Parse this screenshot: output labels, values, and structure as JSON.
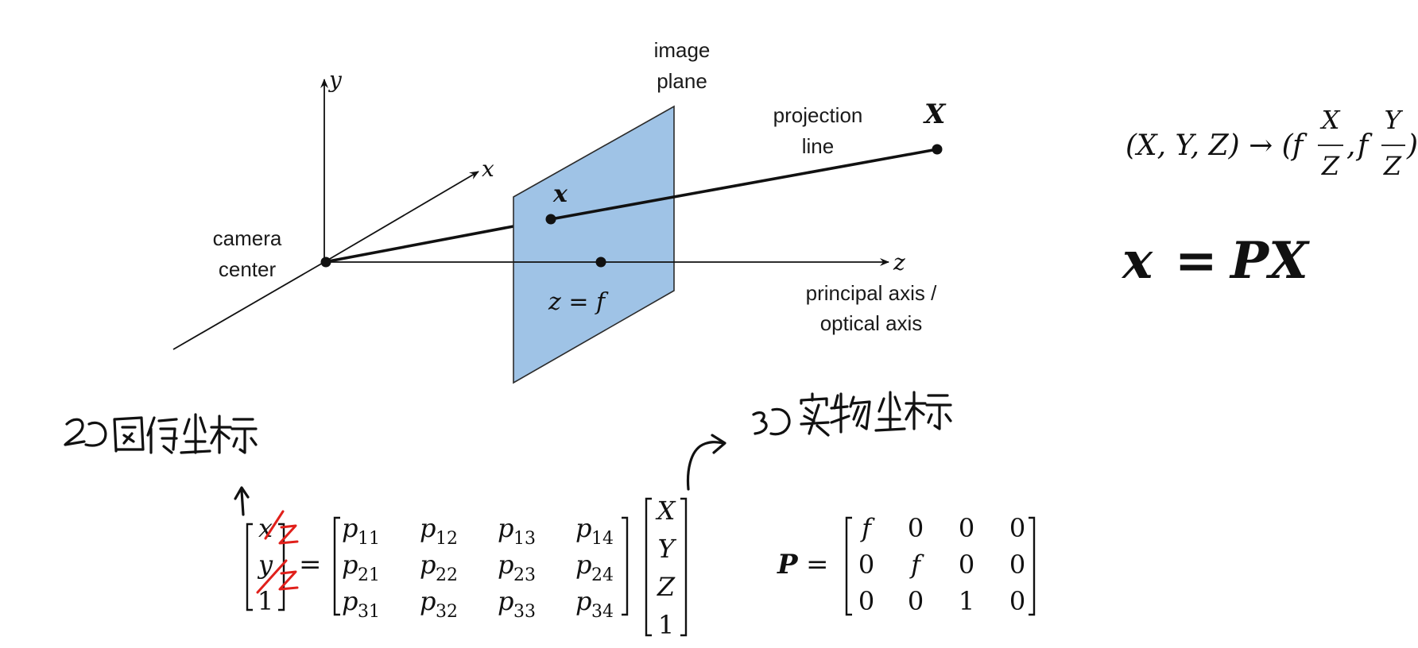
{
  "diagram": {
    "labels": {
      "image_plane_1": "image",
      "image_plane_2": "plane",
      "projection_line_1": "projection",
      "projection_line_2": "line",
      "camera_center_1": "camera",
      "camera_center_2": "center",
      "principal_axis_1": "principal axis /",
      "principal_axis_2": "optical axis"
    },
    "axis_y": "y",
    "axis_x": "x",
    "axis_z": "z",
    "world_point": "X",
    "image_point": "x",
    "plane_eq": "z = f",
    "plane_color": "#9fc3e6"
  },
  "equations": {
    "mapping": "(X, Y, Z) → (f X/Z, f Y/Z)",
    "mapping_left": "(X, Y, Z) → (",
    "mapping_f1": "f",
    "mapping_num1": "X",
    "mapping_den1": "Z",
    "mapping_comma": ",",
    "mapping_f2": "f",
    "mapping_num2": "Y",
    "mapping_den2": "Z",
    "mapping_right": ")",
    "projection": "x = PX",
    "projection_lhs": "x",
    "projection_eq": "=",
    "projection_rhs": "PX"
  },
  "matrix_equation": {
    "lhs": [
      "x",
      "y",
      "1"
    ],
    "equals": "=",
    "p": [
      [
        "p11",
        "p12",
        "p13",
        "p14"
      ],
      [
        "p21",
        "p22",
        "p23",
        "p24"
      ],
      [
        "p31",
        "p32",
        "p33",
        "p34"
      ]
    ],
    "p_display": [
      [
        {
          "b": "p",
          "s": "11"
        },
        {
          "b": "p",
          "s": "12"
        },
        {
          "b": "p",
          "s": "13"
        },
        {
          "b": "p",
          "s": "14"
        }
      ],
      [
        {
          "b": "p",
          "s": "21"
        },
        {
          "b": "p",
          "s": "22"
        },
        {
          "b": "p",
          "s": "23"
        },
        {
          "b": "p",
          "s": "24"
        }
      ],
      [
        {
          "b": "p",
          "s": "31"
        },
        {
          "b": "p",
          "s": "32"
        },
        {
          "b": "p",
          "s": "33"
        },
        {
          "b": "p",
          "s": "34"
        }
      ]
    ],
    "rhs": [
      "X",
      "Y",
      "Z",
      "1"
    ]
  },
  "p_matrix": {
    "name": "P",
    "equals": "=",
    "rows": [
      [
        "f",
        "0",
        "0",
        "0"
      ],
      [
        "0",
        "f",
        "0",
        "0"
      ],
      [
        "0",
        "0",
        "1",
        "0"
      ]
    ]
  },
  "annotations": {
    "red_marks": [
      "/z",
      "/z"
    ],
    "red_color": "#e0201b",
    "handwritten_left": "2D 图像坐标",
    "handwritten_right": "3D 实物坐标"
  }
}
